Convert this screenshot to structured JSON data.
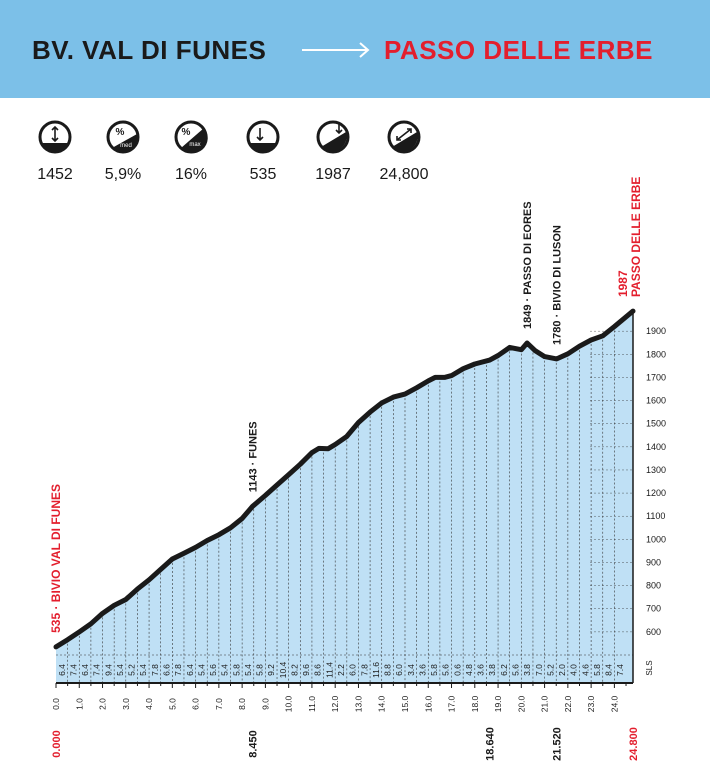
{
  "header": {
    "from": "BV. VAL DI FUNES",
    "to": "PASSO DELLE ERBE"
  },
  "stats": [
    {
      "icon": "altitude-gain-icon",
      "value": "1452"
    },
    {
      "icon": "average-gradient-icon",
      "label": "%",
      "sub": "med",
      "value": "5,9%"
    },
    {
      "icon": "max-gradient-icon",
      "label": "%",
      "sub": "max",
      "value": "16%"
    },
    {
      "icon": "min-altitude-icon",
      "value": "535"
    },
    {
      "icon": "max-altitude-icon",
      "value": "1987"
    },
    {
      "icon": "distance-icon",
      "value": "24,800"
    }
  ],
  "colors": {
    "header": "#7cc0e8",
    "red": "#e31e2d",
    "fill": "#bfe0f5",
    "dark": "#1a1a1a"
  },
  "chart_data": {
    "type": "area",
    "xlim": [
      0,
      24.8
    ],
    "ylim": [
      500,
      2000
    ],
    "elevation_profile": [
      [
        0,
        535
      ],
      [
        0.5,
        566
      ],
      [
        1,
        600
      ],
      [
        1.5,
        635
      ],
      [
        2,
        680
      ],
      [
        2.5,
        715
      ],
      [
        3,
        740
      ],
      [
        3.5,
        785
      ],
      [
        4,
        825
      ],
      [
        4.5,
        870
      ],
      [
        5,
        915
      ],
      [
        5.5,
        940
      ],
      [
        6,
        965
      ],
      [
        6.5,
        995
      ],
      [
        7,
        1020
      ],
      [
        7.5,
        1050
      ],
      [
        8,
        1090
      ],
      [
        8.45,
        1143
      ],
      [
        9,
        1190
      ],
      [
        9.5,
        1235
      ],
      [
        10,
        1280
      ],
      [
        10.5,
        1325
      ],
      [
        11,
        1375
      ],
      [
        11.3,
        1393
      ],
      [
        11.7,
        1392
      ],
      [
        12,
        1410
      ],
      [
        12.5,
        1445
      ],
      [
        13,
        1505
      ],
      [
        13.5,
        1550
      ],
      [
        14,
        1590
      ],
      [
        14.5,
        1615
      ],
      [
        15,
        1628
      ],
      [
        15.5,
        1655
      ],
      [
        16,
        1685
      ],
      [
        16.3,
        1700
      ],
      [
        16.7,
        1700
      ],
      [
        17,
        1708
      ],
      [
        17.5,
        1738
      ],
      [
        18,
        1758
      ],
      [
        18.64,
        1775
      ],
      [
        19,
        1795
      ],
      [
        19.5,
        1830
      ],
      [
        20,
        1820
      ],
      [
        20.25,
        1849
      ],
      [
        20.6,
        1815
      ],
      [
        21,
        1790
      ],
      [
        21.52,
        1780
      ],
      [
        22,
        1802
      ],
      [
        22.5,
        1835
      ],
      [
        23,
        1862
      ],
      [
        23.5,
        1880
      ],
      [
        24,
        1920
      ],
      [
        24.8,
        1987
      ]
    ],
    "segment_gradients": [
      "6.4",
      "7.4",
      "6.4",
      "7.4",
      "9.4",
      "5.4",
      "5.2",
      "5.4",
      "7.8",
      "6.6",
      "7.8",
      "6.4",
      "5.4",
      "5.6",
      "5.4",
      "5.8",
      "5.4",
      "5.8",
      "9.2",
      "10.4",
      "8.2",
      "9.6",
      "8.6",
      "11.4",
      "2.2",
      "6.0",
      "7.8",
      "11.6",
      "8.8",
      "6.0",
      "3.4",
      "3.6",
      "5.8",
      "5.6",
      "0.6",
      "4.8",
      "3.6",
      "3.8",
      "6.2",
      "5.6",
      "3.8",
      "7.0",
      "5.2",
      "2.0",
      "4.0",
      "4.6",
      "5.8",
      "8.4",
      "7.4"
    ],
    "km_ticks": [
      {
        "v": 0,
        "t": "0.0"
      },
      {
        "v": 1,
        "t": "1.0"
      },
      {
        "v": 2,
        "t": "2.0"
      },
      {
        "v": 3,
        "t": "3.0"
      },
      {
        "v": 4,
        "t": "4.0"
      },
      {
        "v": 5,
        "t": "5.0"
      },
      {
        "v": 6,
        "t": "6.0"
      },
      {
        "v": 7,
        "t": "7.0"
      },
      {
        "v": 8,
        "t": "8.0"
      },
      {
        "v": 9,
        "t": "9.0"
      },
      {
        "v": 10,
        "t": "10.0"
      },
      {
        "v": 11,
        "t": "11.0"
      },
      {
        "v": 12,
        "t": "12.0"
      },
      {
        "v": 13,
        "t": "13.0"
      },
      {
        "v": 14,
        "t": "14.0"
      },
      {
        "v": 15,
        "t": "15.0"
      },
      {
        "v": 16,
        "t": "16.0"
      },
      {
        "v": 17,
        "t": "17.0"
      },
      {
        "v": 18,
        "t": "18.0"
      },
      {
        "v": 19,
        "t": "19.0"
      },
      {
        "v": 20,
        "t": "20.0"
      },
      {
        "v": 21,
        "t": "21.0"
      },
      {
        "v": 22,
        "t": "22.0"
      },
      {
        "v": 23,
        "t": "23.0"
      },
      {
        "v": 24,
        "t": "24.0"
      }
    ],
    "altitude_ticks": [
      600,
      700,
      800,
      900,
      1000,
      1100,
      1200,
      1300,
      1400,
      1500,
      1600,
      1700,
      1800,
      1900
    ],
    "bottom_labels": [
      {
        "v": 0,
        "t": "0.000",
        "red": true
      },
      {
        "v": 8.45,
        "t": "8.450",
        "red": false
      },
      {
        "v": 18.64,
        "t": "18.640",
        "red": false
      },
      {
        "v": 21.52,
        "t": "21.520",
        "red": false
      },
      {
        "v": 24.8,
        "t": "24.800",
        "red": true
      }
    ],
    "waypoints": [
      {
        "km": 0,
        "alt": 535,
        "label": "535 · BIVIO VAL DI FUNES",
        "red": true
      },
      {
        "km": 8.45,
        "alt": 1143,
        "label": "1143 · FUNES",
        "red": false
      },
      {
        "km": 20.25,
        "alt": 1849,
        "label": "1849 · PASSO DI EORES",
        "red": false
      },
      {
        "km": 21.52,
        "alt": 1780,
        "label": "1780 · BIVIO DI LUSON",
        "red": false
      },
      {
        "km": 24.8,
        "alt": 1987,
        "line1": "1987",
        "line2": "PASSO DELLE ERBE",
        "red": true
      }
    ],
    "axis_unit": "SLS"
  }
}
